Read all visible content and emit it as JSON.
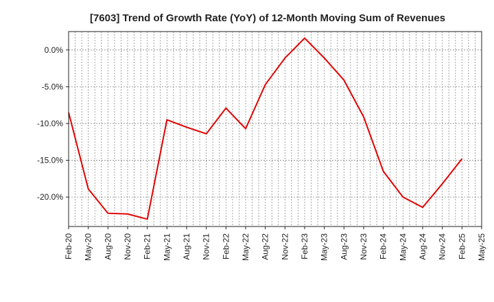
{
  "chart_data": {
    "type": "line",
    "title": "[7603]  Trend of Growth Rate (YoY) of 12-Month Moving Sum of Revenues",
    "xlabel": "",
    "ylabel": "",
    "x_ticks": [
      "Feb-20",
      "May-20",
      "Aug-20",
      "Nov-20",
      "Feb-21",
      "May-21",
      "Aug-21",
      "Nov-21",
      "Feb-22",
      "May-22",
      "Aug-22",
      "Nov-22",
      "Feb-23",
      "May-23",
      "Aug-23",
      "Nov-23",
      "Feb-24",
      "May-24",
      "Aug-24",
      "Nov-24",
      "Feb-25",
      "May-25"
    ],
    "y_ticks": [
      {
        "value": 0,
        "label": "0.0%"
      },
      {
        "value": -5,
        "label": "-5.0%"
      },
      {
        "value": -10,
        "label": "-10.0%"
      },
      {
        "value": -15,
        "label": "-15.0%"
      },
      {
        "value": -20,
        "label": "-20.0%"
      }
    ],
    "ylim": [
      -24,
      2.5
    ],
    "grid": true,
    "series": [
      {
        "color": "#e00000",
        "points": [
          {
            "x": "Feb-20",
            "y": -8.5
          },
          {
            "x": "May-20",
            "y": -18.9
          },
          {
            "x": "Aug-20",
            "y": -22.2
          },
          {
            "x": "Nov-20",
            "y": -22.3
          },
          {
            "x": "Feb-21",
            "y": -23.0
          },
          {
            "x": "May-21",
            "y": -9.5
          },
          {
            "x": "Aug-21",
            "y": -10.5
          },
          {
            "x": "Nov-21",
            "y": -11.4
          },
          {
            "x": "Feb-22",
            "y": -7.9
          },
          {
            "x": "May-22",
            "y": -10.7
          },
          {
            "x": "Aug-22",
            "y": -4.7
          },
          {
            "x": "Nov-22",
            "y": -1.1
          },
          {
            "x": "Feb-23",
            "y": 1.6
          },
          {
            "x": "May-23",
            "y": -1.1
          },
          {
            "x": "Aug-23",
            "y": -4.1
          },
          {
            "x": "Nov-23",
            "y": -9.1
          },
          {
            "x": "Feb-24",
            "y": -16.5
          },
          {
            "x": "May-24",
            "y": -20.0
          },
          {
            "x": "Aug-24",
            "y": -21.4
          },
          {
            "x": "Nov-24",
            "y": -18.2
          },
          {
            "x": "Feb-25",
            "y": -14.8
          }
        ]
      }
    ]
  }
}
